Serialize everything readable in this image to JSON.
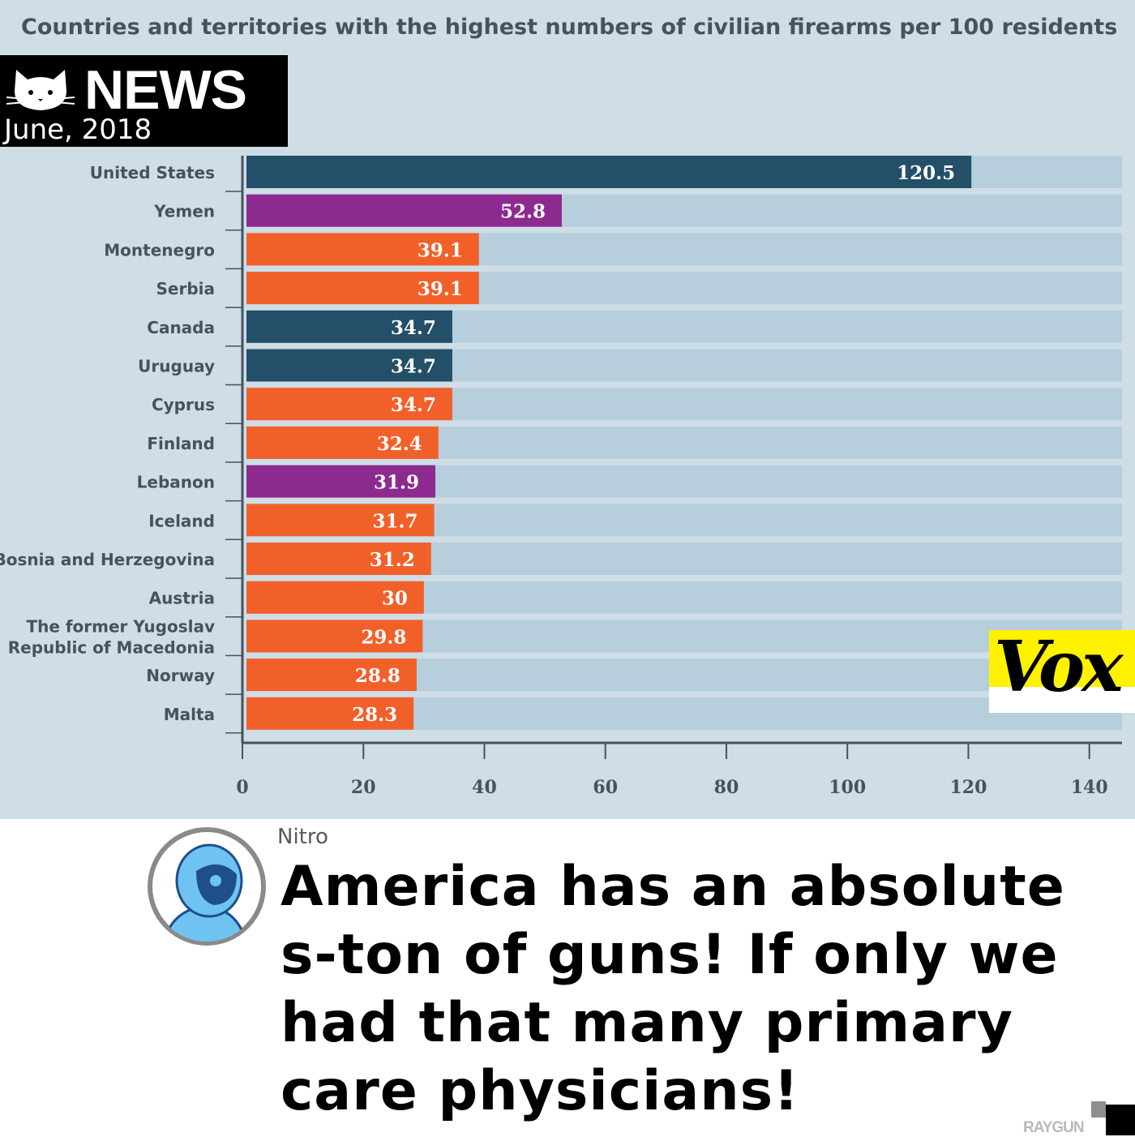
{
  "badge": {
    "label": "NEWS",
    "date": "June, 2018",
    "icon": "cat-icon"
  },
  "vox": {
    "logo_text": "Vox",
    "bg_color": "#fff200"
  },
  "post": {
    "author": "Nitro",
    "headline": "America has an absolute s-ton of guns! If only we had that many primary care physicians!",
    "avatar_icon": "astronaut-avatar-icon"
  },
  "watermark": "RAYGUN",
  "colors": {
    "navy": "#235068",
    "purple": "#8d2a90",
    "orange": "#f2602a",
    "track": "#b7cfdd",
    "panel": "#cfdde6"
  },
  "chart_data": {
    "type": "bar",
    "orientation": "horizontal",
    "title": "Countries and territories with the highest numbers of civilian firearms per 100 residents",
    "xlim": [
      0,
      140
    ],
    "xticks": [
      0,
      20,
      40,
      60,
      80,
      100,
      120,
      140
    ],
    "grid": false,
    "categories": [
      [
        "United States"
      ],
      [
        "Yemen"
      ],
      [
        "Montenegro"
      ],
      [
        "Serbia"
      ],
      [
        "Canada"
      ],
      [
        "Uruguay"
      ],
      [
        "Cyprus"
      ],
      [
        "Finland"
      ],
      [
        "Lebanon"
      ],
      [
        "Iceland"
      ],
      [
        "Bosnia and Herzegovina"
      ],
      [
        "Austria"
      ],
      [
        "The former Yugoslav",
        "Republic of Macedonia"
      ],
      [
        "Norway"
      ],
      [
        "Malta"
      ]
    ],
    "values": [
      120.5,
      52.8,
      39.1,
      39.1,
      34.7,
      34.7,
      34.7,
      32.4,
      31.9,
      31.7,
      31.2,
      30,
      29.8,
      28.8,
      28.3
    ],
    "value_labels": [
      "120.5",
      "52.8",
      "39.1",
      "39.1",
      "34.7",
      "34.7",
      "34.7",
      "32.4",
      "31.9",
      "31.7",
      "31.2",
      "30",
      "29.8",
      "28.8",
      "28.3"
    ],
    "bar_colors": [
      "#235068",
      "#8d2a90",
      "#f2602a",
      "#f2602a",
      "#235068",
      "#235068",
      "#f2602a",
      "#f2602a",
      "#8d2a90",
      "#f2602a",
      "#f2602a",
      "#f2602a",
      "#f2602a",
      "#f2602a",
      "#f2602a"
    ]
  }
}
